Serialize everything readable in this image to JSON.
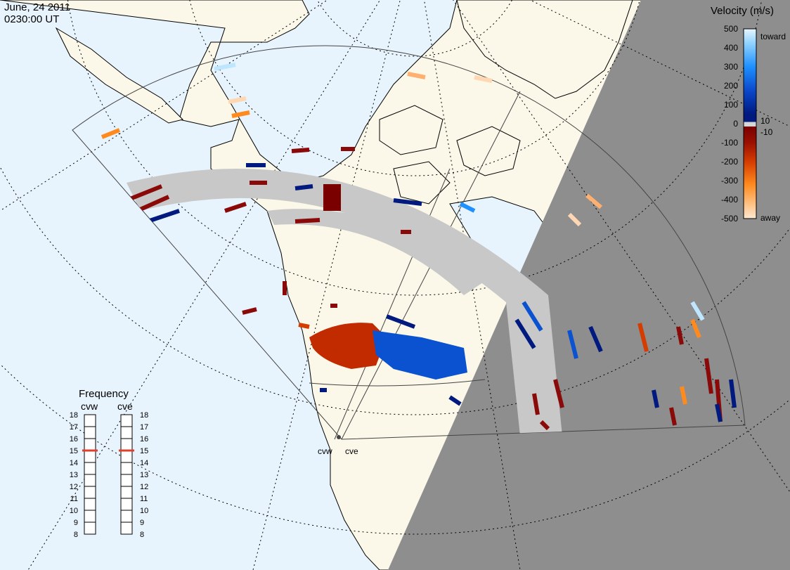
{
  "header": {
    "date": "June, 24 2011",
    "time": "0230:00 UT"
  },
  "colorbar": {
    "title": "Velocity (m/s)",
    "ticks": [
      "500",
      "400",
      "300",
      "200",
      "100",
      "10",
      "0",
      "-10",
      "-100",
      "-200",
      "-300",
      "-400",
      "-500"
    ],
    "toward_label": "toward",
    "away_label": "away",
    "colors": {
      "toward_light": "#bfe6ff",
      "toward_mid": "#1e90ff",
      "toward_dark": "#001a80",
      "zero": "#d6d6d6",
      "away_dark": "#7a0000",
      "away_mid": "#d43c00",
      "away_orange": "#ff8a1e",
      "away_light": "#ffd7b3",
      "ground_scatter": "#c8c8c8",
      "night_shade": "#8e8e8e",
      "ocean": "#e8f4fd",
      "land": "#fbf8e9"
    }
  },
  "frequency": {
    "title": "Frequency",
    "left_radar": "cvw",
    "right_radar": "cve",
    "scale": [
      "18",
      "17",
      "16",
      "15",
      "14",
      "13",
      "12",
      "11",
      "10",
      "9",
      "8"
    ],
    "cvw_value": 15,
    "cve_value": 15,
    "indicator_color": "#e0402a"
  },
  "radars": {
    "west_label": "cvw",
    "east_label": "cve"
  }
}
